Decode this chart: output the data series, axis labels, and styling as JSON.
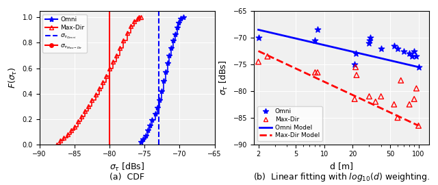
{
  "cdf_omni_x": [
    -75.5,
    -75.2,
    -74.8,
    -74.5,
    -74.2,
    -73.9,
    -73.5,
    -73.2,
    -72.9,
    -72.6,
    -72.3,
    -72.0,
    -71.7,
    -71.5,
    -71.2,
    -70.9,
    -70.6,
    -70.3,
    -70.1,
    -69.8,
    -69.5
  ],
  "cdf_omni_y": [
    0.02,
    0.04,
    0.07,
    0.11,
    0.15,
    0.19,
    0.24,
    0.29,
    0.35,
    0.42,
    0.5,
    0.57,
    0.64,
    0.7,
    0.76,
    0.82,
    0.87,
    0.92,
    0.96,
    0.99,
    1.0
  ],
  "cdf_maxdir_x": [
    -87.5,
    -87.0,
    -86.5,
    -86.0,
    -85.5,
    -85.0,
    -84.5,
    -84.0,
    -83.5,
    -83.0,
    -82.5,
    -82.0,
    -81.5,
    -81.0,
    -80.5,
    -80.0,
    -79.5,
    -79.0,
    -78.5,
    -78.0,
    -77.5,
    -77.0,
    -76.5,
    -76.0,
    -75.8,
    -75.5
  ],
  "cdf_maxdir_y": [
    0.0,
    0.03,
    0.05,
    0.08,
    0.11,
    0.14,
    0.18,
    0.22,
    0.26,
    0.3,
    0.35,
    0.39,
    0.44,
    0.49,
    0.54,
    0.6,
    0.65,
    0.7,
    0.76,
    0.82,
    0.88,
    0.93,
    0.97,
    0.99,
    1.0,
    1.0
  ],
  "mean_omni": -73.0,
  "mean_maxdir": -80.0,
  "scatter_omni_d": [
    2.0,
    8.0,
    8.5,
    21.0,
    21.5,
    30.0,
    30.5,
    31.0,
    40.0,
    55.0,
    60.0,
    70.0,
    80.0,
    85.0,
    90.0,
    95.0,
    100.0
  ],
  "scatter_omni_sigma": [
    -70.0,
    -70.5,
    -68.5,
    -75.0,
    -73.0,
    -71.0,
    -70.5,
    -70.0,
    -72.0,
    -71.5,
    -72.0,
    -72.5,
    -73.0,
    -73.5,
    -72.5,
    -73.5,
    -75.5
  ],
  "scatter_maxdir_d": [
    2.0,
    2.5,
    8.0,
    8.5,
    21.0,
    21.5,
    22.0,
    30.0,
    35.0,
    40.0,
    55.0,
    60.0,
    65.0,
    80.0,
    90.0,
    95.0,
    100.0
  ],
  "scatter_maxdir_sigma": [
    -74.5,
    -73.5,
    -76.5,
    -76.5,
    -81.5,
    -75.5,
    -77.0,
    -81.0,
    -82.0,
    -81.0,
    -82.5,
    -85.0,
    -78.0,
    -82.5,
    -81.5,
    -79.5,
    -86.5
  ],
  "omni_model_d": [
    2,
    100
  ],
  "omni_model_sigma": [
    -68.5,
    -75.5
  ],
  "maxdir_model_d": [
    2,
    100
  ],
  "maxdir_model_sigma": [
    -72.5,
    -86.5
  ],
  "omni_color": "#0000FF",
  "maxdir_color": "#FF0000",
  "bg_color": "#f0f0f0",
  "xlim_cdf": [
    -90,
    -65
  ],
  "ylim_cdf": [
    0,
    1.05
  ],
  "xlim_scatter_log": [
    1.8,
    130
  ],
  "ylim_scatter": [
    -90,
    -65
  ],
  "cdf_xlabel": "$\\sigma_{\\tau}$ [dBs]",
  "cdf_ylabel": "$F(\\sigma_{\\tau})$",
  "scatter_xlabel": "d [m]",
  "scatter_ylabel": "$\\sigma_{\\tau}$ [dBs]",
  "caption_a": "(a)  CDF",
  "caption_b": "(b)  Linear fitting with $log_{10}(d)$ weighting."
}
